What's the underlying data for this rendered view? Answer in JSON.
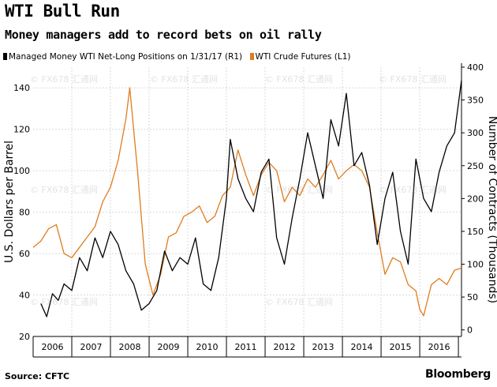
{
  "chart_data": {
    "type": "line",
    "title": "WTI Bull Run",
    "subtitle": "Money managers add to record bets on oil rally",
    "ylabel_left": "U.S. Dollars per Barrel",
    "ylabel_right": "Number of Contracts (Thousands)",
    "ylim_left": [
      20,
      150
    ],
    "ylim_right": [
      -10,
      400
    ],
    "yticks_left": [
      "140",
      "120",
      "100",
      "80",
      "60",
      "40",
      "20"
    ],
    "yticks_right": [
      "400",
      "350",
      "300",
      "250",
      "200",
      "150",
      "100",
      "50",
      "0"
    ],
    "x_categories": [
      "2006",
      "2007",
      "2008",
      "2009",
      "2010",
      "2011",
      "2012",
      "2013",
      "2014",
      "2015",
      "2016"
    ],
    "grid": true,
    "legend_position": "top-left",
    "series": [
      {
        "name": "Managed Money WTI Net-Long Positions on 1/31/17 (R1)",
        "axis": "right",
        "color": "#000000",
        "x": [
          2006.2,
          2006.35,
          2006.5,
          2006.65,
          2006.8,
          2007.0,
          2007.2,
          2007.4,
          2007.6,
          2007.8,
          2008.0,
          2008.2,
          2008.4,
          2008.6,
          2008.8,
          2009.0,
          2009.2,
          2009.4,
          2009.6,
          2009.8,
          2010.0,
          2010.2,
          2010.4,
          2010.6,
          2010.8,
          2011.0,
          2011.1,
          2011.3,
          2011.5,
          2011.7,
          2011.9,
          2012.1,
          2012.3,
          2012.5,
          2012.7,
          2012.9,
          2013.1,
          2013.3,
          2013.5,
          2013.7,
          2013.9,
          2014.1,
          2014.3,
          2014.5,
          2014.7,
          2014.9,
          2015.1,
          2015.3,
          2015.5,
          2015.7,
          2015.9,
          2016.1,
          2016.3,
          2016.5,
          2016.7,
          2016.9,
          2017.08
        ],
        "y": [
          40,
          20,
          55,
          45,
          70,
          60,
          110,
          90,
          140,
          110,
          150,
          130,
          90,
          70,
          30,
          40,
          60,
          120,
          90,
          110,
          100,
          140,
          70,
          60,
          110,
          200,
          290,
          230,
          200,
          180,
          240,
          260,
          140,
          100,
          170,
          230,
          300,
          250,
          200,
          320,
          280,
          360,
          250,
          270,
          220,
          130,
          200,
          240,
          150,
          100,
          260,
          200,
          180,
          240,
          280,
          300,
          380
        ]
      },
      {
        "name": "WTI Crude Futures (L1)",
        "axis": "left",
        "color": "#e07c1e",
        "x": [
          2006.0,
          2006.2,
          2006.4,
          2006.6,
          2006.8,
          2007.0,
          2007.2,
          2007.4,
          2007.6,
          2007.8,
          2008.0,
          2008.2,
          2008.4,
          2008.5,
          2008.7,
          2008.9,
          2009.1,
          2009.3,
          2009.5,
          2009.7,
          2009.9,
          2010.1,
          2010.3,
          2010.5,
          2010.7,
          2010.9,
          2011.1,
          2011.3,
          2011.5,
          2011.7,
          2011.9,
          2012.1,
          2012.3,
          2012.5,
          2012.7,
          2012.9,
          2013.1,
          2013.3,
          2013.5,
          2013.7,
          2013.9,
          2014.1,
          2014.3,
          2014.5,
          2014.7,
          2014.9,
          2015.1,
          2015.3,
          2015.5,
          2015.7,
          2015.9,
          2016.0,
          2016.1,
          2016.3,
          2016.5,
          2016.7,
          2016.9,
          2017.08
        ],
        "y": [
          63,
          66,
          72,
          74,
          60,
          58,
          63,
          68,
          73,
          85,
          92,
          105,
          125,
          140,
          100,
          55,
          40,
          50,
          68,
          70,
          78,
          80,
          83,
          75,
          78,
          88,
          92,
          110,
          98,
          88,
          98,
          104,
          100,
          85,
          92,
          88,
          96,
          92,
          98,
          105,
          96,
          100,
          103,
          100,
          92,
          70,
          50,
          58,
          56,
          45,
          42,
          33,
          30,
          45,
          48,
          45,
          52,
          53
        ]
      }
    ]
  },
  "footer": {
    "source": "Source: CFTC",
    "brand": "Bloomberg"
  },
  "watermark": "© FX678 汇通网"
}
